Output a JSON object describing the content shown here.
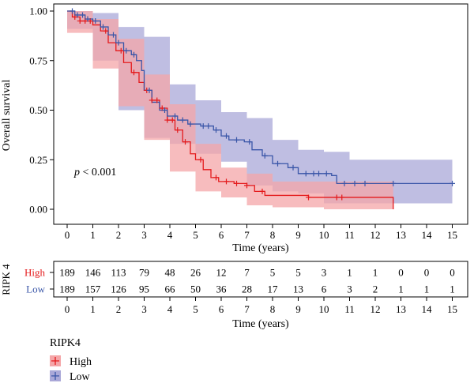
{
  "chart_data": [
    {
      "type": "line",
      "subtype": "kaplan-meier",
      "ylabel": "Overall survival",
      "xlabel": "Time (years)",
      "xlim": [
        0,
        15
      ],
      "ylim": [
        0,
        1
      ],
      "x_ticks": [
        "0",
        "1",
        "2",
        "3",
        "4",
        "5",
        "6",
        "7",
        "8",
        "9",
        "10",
        "11",
        "12",
        "13",
        "14",
        "15"
      ],
      "y_ticks": [
        "0.00",
        "0.25",
        "0.50",
        "0.75",
        "1.00"
      ],
      "annotation": "p < 0.001",
      "series": [
        {
          "name": "High",
          "color": "#e41a1c",
          "band_color": "#f4a6a8",
          "steps": [
            [
              0.0,
              1.0
            ],
            [
              0.2,
              0.97
            ],
            [
              0.5,
              0.95
            ],
            [
              1.0,
              0.93
            ],
            [
              1.3,
              0.9
            ],
            [
              1.6,
              0.84
            ],
            [
              1.9,
              0.8
            ],
            [
              2.2,
              0.74
            ],
            [
              2.5,
              0.69
            ],
            [
              2.8,
              0.64
            ],
            [
              3.0,
              0.6
            ],
            [
              3.3,
              0.55
            ],
            [
              3.6,
              0.51
            ],
            [
              3.9,
              0.45
            ],
            [
              4.2,
              0.4
            ],
            [
              4.5,
              0.34
            ],
            [
              4.8,
              0.28
            ],
            [
              5.0,
              0.25
            ],
            [
              5.3,
              0.2
            ],
            [
              5.6,
              0.16
            ],
            [
              5.9,
              0.14
            ],
            [
              6.5,
              0.13
            ],
            [
              7.0,
              0.12
            ],
            [
              7.3,
              0.09
            ],
            [
              7.7,
              0.07
            ],
            [
              9.4,
              0.06
            ],
            [
              12.7,
              0.0
            ]
          ],
          "band_upper": [
            [
              0.0,
              1.0
            ],
            [
              1.0,
              0.96
            ],
            [
              2.0,
              0.86
            ],
            [
              3.0,
              0.68
            ],
            [
              4.0,
              0.53
            ],
            [
              5.0,
              0.33
            ],
            [
              6.0,
              0.21
            ],
            [
              7.0,
              0.18
            ],
            [
              8.0,
              0.14
            ],
            [
              10.0,
              0.14
            ],
            [
              12.7,
              0.14
            ]
          ],
          "band_lower": [
            [
              0.0,
              0.98
            ],
            [
              1.0,
              0.89
            ],
            [
              2.0,
              0.71
            ],
            [
              3.0,
              0.52
            ],
            [
              4.0,
              0.35
            ],
            [
              5.0,
              0.19
            ],
            [
              6.0,
              0.09
            ],
            [
              7.0,
              0.06
            ],
            [
              8.0,
              0.02
            ],
            [
              10.0,
              0.01
            ],
            [
              12.7,
              0.0
            ]
          ],
          "censor_x": [
            0.3,
            0.5,
            0.7,
            0.9,
            1.5,
            2.1,
            2.6,
            3.1,
            3.3,
            3.5,
            3.7,
            3.9,
            4.1,
            4.3,
            4.6,
            5.2,
            5.8,
            6.2,
            6.6,
            7.0,
            7.6,
            9.4,
            10.5,
            10.7
          ]
        },
        {
          "name": "Low",
          "color": "#3a56a8",
          "band_color": "#aaa8d8",
          "steps": [
            [
              0.0,
              1.0
            ],
            [
              0.3,
              0.98
            ],
            [
              0.7,
              0.96
            ],
            [
              1.0,
              0.95
            ],
            [
              1.3,
              0.92
            ],
            [
              1.6,
              0.88
            ],
            [
              1.9,
              0.84
            ],
            [
              2.2,
              0.8
            ],
            [
              2.5,
              0.78
            ],
            [
              2.7,
              0.75
            ],
            [
              2.9,
              0.7
            ],
            [
              3.0,
              0.6
            ],
            [
              3.3,
              0.54
            ],
            [
              3.6,
              0.5
            ],
            [
              3.9,
              0.47
            ],
            [
              4.3,
              0.45
            ],
            [
              4.7,
              0.43
            ],
            [
              5.2,
              0.42
            ],
            [
              5.7,
              0.4
            ],
            [
              6.0,
              0.37
            ],
            [
              6.3,
              0.35
            ],
            [
              6.9,
              0.34
            ],
            [
              7.2,
              0.3
            ],
            [
              7.6,
              0.27
            ],
            [
              8.0,
              0.23
            ],
            [
              8.6,
              0.21
            ],
            [
              9.0,
              0.18
            ],
            [
              10.3,
              0.17
            ],
            [
              10.5,
              0.13
            ],
            [
              15.0,
              0.13
            ]
          ],
          "band_upper": [
            [
              0.0,
              1.0
            ],
            [
              1.0,
              0.99
            ],
            [
              2.0,
              0.92
            ],
            [
              3.0,
              0.87
            ],
            [
              4.0,
              0.63
            ],
            [
              5.0,
              0.55
            ],
            [
              6.0,
              0.49
            ],
            [
              7.0,
              0.46
            ],
            [
              8.0,
              0.35
            ],
            [
              9.0,
              0.3
            ],
            [
              10.0,
              0.29
            ],
            [
              11.0,
              0.25
            ],
            [
              15.0,
              0.25
            ]
          ],
          "band_lower": [
            [
              0.0,
              0.97
            ],
            [
              1.0,
              0.91
            ],
            [
              2.0,
              0.75
            ],
            [
              3.0,
              0.5
            ],
            [
              4.0,
              0.36
            ],
            [
              5.0,
              0.33
            ],
            [
              6.0,
              0.28
            ],
            [
              7.0,
              0.24
            ],
            [
              8.0,
              0.12
            ],
            [
              9.0,
              0.09
            ],
            [
              10.0,
              0.08
            ],
            [
              11.0,
              0.03
            ],
            [
              15.0,
              0.03
            ]
          ],
          "censor_x": [
            0.2,
            0.4,
            0.6,
            0.8,
            1.1,
            1.4,
            1.8,
            2.0,
            2.3,
            2.6,
            3.2,
            3.8,
            4.2,
            4.5,
            4.8,
            5.3,
            5.5,
            5.8,
            6.2,
            6.6,
            7.1,
            7.7,
            8.2,
            8.8,
            9.3,
            9.6,
            9.8,
            10.1,
            10.8,
            11.2,
            11.6,
            12.7,
            15.0
          ]
        }
      ]
    },
    {
      "type": "table",
      "title": "RIPK 4",
      "xlabel": "Time (years)",
      "x_ticks": [
        "0",
        "1",
        "2",
        "3",
        "4",
        "5",
        "6",
        "7",
        "8",
        "9",
        "10",
        "11",
        "12",
        "13",
        "14",
        "15"
      ],
      "rows": [
        {
          "name": "High",
          "color": "#e41a1c",
          "values": [
            "189",
            "146",
            "113",
            "79",
            "48",
            "26",
            "12",
            "7",
            "5",
            "5",
            "3",
            "1",
            "1",
            "0",
            "0",
            "0"
          ]
        },
        {
          "name": "Low",
          "color": "#3a56a8",
          "values": [
            "189",
            "157",
            "126",
            "95",
            "66",
            "50",
            "36",
            "28",
            "17",
            "13",
            "6",
            "3",
            "2",
            "1",
            "1",
            "1"
          ]
        }
      ]
    }
  ],
  "legend": {
    "title": "RIPK4",
    "items": [
      {
        "label": "High",
        "color": "#e41a1c",
        "fill": "#f4a6a8"
      },
      {
        "label": "Low",
        "color": "#3a56a8",
        "fill": "#aaa8d8"
      }
    ]
  }
}
